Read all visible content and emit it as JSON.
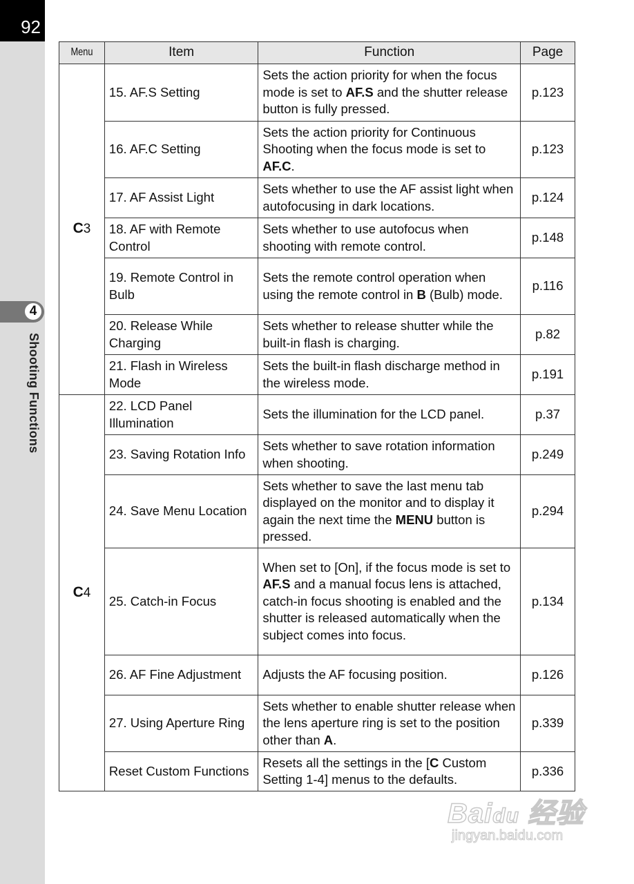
{
  "page_number": "92",
  "chapter": {
    "number": "4",
    "title": "Shooting Functions"
  },
  "table": {
    "headers": [
      "Menu",
      "Item",
      "Function",
      "Page"
    ],
    "groups": [
      {
        "menu_icon": "C",
        "menu_num": "3",
        "rows": [
          {
            "item": "15. AF.S Setting",
            "function": [
              [
                "Sets the action priority for when the focus mode is set to ",
                0
              ],
              [
                "AF.S",
                1
              ],
              [
                " and the shutter release button is fully pressed.",
                0
              ]
            ],
            "page": "p.123"
          },
          {
            "item": "16. AF.C Setting",
            "function": [
              [
                "Sets the action priority for Continuous Shooting when the focus mode is set to ",
                0
              ],
              [
                "AF.C",
                1
              ],
              [
                ".",
                0
              ]
            ],
            "page": "p.123"
          },
          {
            "item": "17. AF Assist Light",
            "function": [
              [
                "Sets whether to use the AF assist light when autofocusing in dark locations.",
                0
              ]
            ],
            "page": "p.124"
          },
          {
            "item": "18. AF with Remote Control",
            "function": [
              [
                "Sets whether to use autofocus when shooting with remote control.",
                0
              ]
            ],
            "page": "p.148"
          },
          {
            "item": "19. Remote Control in Bulb",
            "function": [
              [
                "Sets the remote control operation when using the remote control in ",
                0
              ],
              [
                "B",
                1
              ],
              [
                " (Bulb) mode.",
                0
              ]
            ],
            "page": "p.116"
          },
          {
            "item": "20. Release While Charging",
            "function": [
              [
                "Sets whether to release shutter while the built-in flash is charging.",
                0
              ]
            ],
            "page": "p.82"
          },
          {
            "item": "21. Flash in Wireless Mode",
            "function": [
              [
                "Sets the built-in flash discharge method in the wireless mode.",
                0
              ]
            ],
            "page": "p.191"
          }
        ]
      },
      {
        "menu_icon": "C",
        "menu_num": "4",
        "rows": [
          {
            "item": "22. LCD Panel Illumination",
            "function": [
              [
                "Sets the illumination for the LCD panel.",
                0
              ]
            ],
            "page": "p.37"
          },
          {
            "item": "23. Saving Rotation Info",
            "function": [
              [
                "Sets whether to save rotation information when shooting.",
                0
              ]
            ],
            "page": "p.249"
          },
          {
            "item": "24. Save Menu Location",
            "function": [
              [
                "Sets whether to save the last menu tab displayed on the monitor and to display it again the next time the ",
                0
              ],
              [
                "MENU",
                1
              ],
              [
                " button is pressed.",
                0
              ]
            ],
            "page": "p.294"
          },
          {
            "item": "25. Catch-in Focus",
            "function": [
              [
                "When set to [On], if the focus mode is set to ",
                0
              ],
              [
                "AF.S",
                1
              ],
              [
                " and a manual focus lens is attached, catch-in focus shooting is enabled and the shutter is released automatically when the subject comes into focus.",
                0
              ]
            ],
            "page": "p.134"
          },
          {
            "item": "26. AF Fine Adjustment",
            "function": [
              [
                "Adjusts the AF focusing position.",
                0
              ]
            ],
            "page": "p.126"
          },
          {
            "item": "27. Using Aperture Ring",
            "function": [
              [
                "Sets whether to enable shutter release when the lens aperture ring is set to the position other than ",
                0
              ],
              [
                "A",
                1
              ],
              [
                ".",
                0
              ]
            ],
            "page": "p.339"
          },
          {
            "item": "Reset Custom Functions",
            "function": [
              [
                "Resets all the settings in the [",
                0
              ],
              [
                "C",
                1
              ],
              [
                " Custom Setting 1-4] menus to the defaults.",
                0
              ]
            ],
            "page": "p.336"
          }
        ]
      }
    ]
  },
  "watermark": {
    "logo": "Bai du 经验",
    "url": "jingyan.baidu.com"
  }
}
